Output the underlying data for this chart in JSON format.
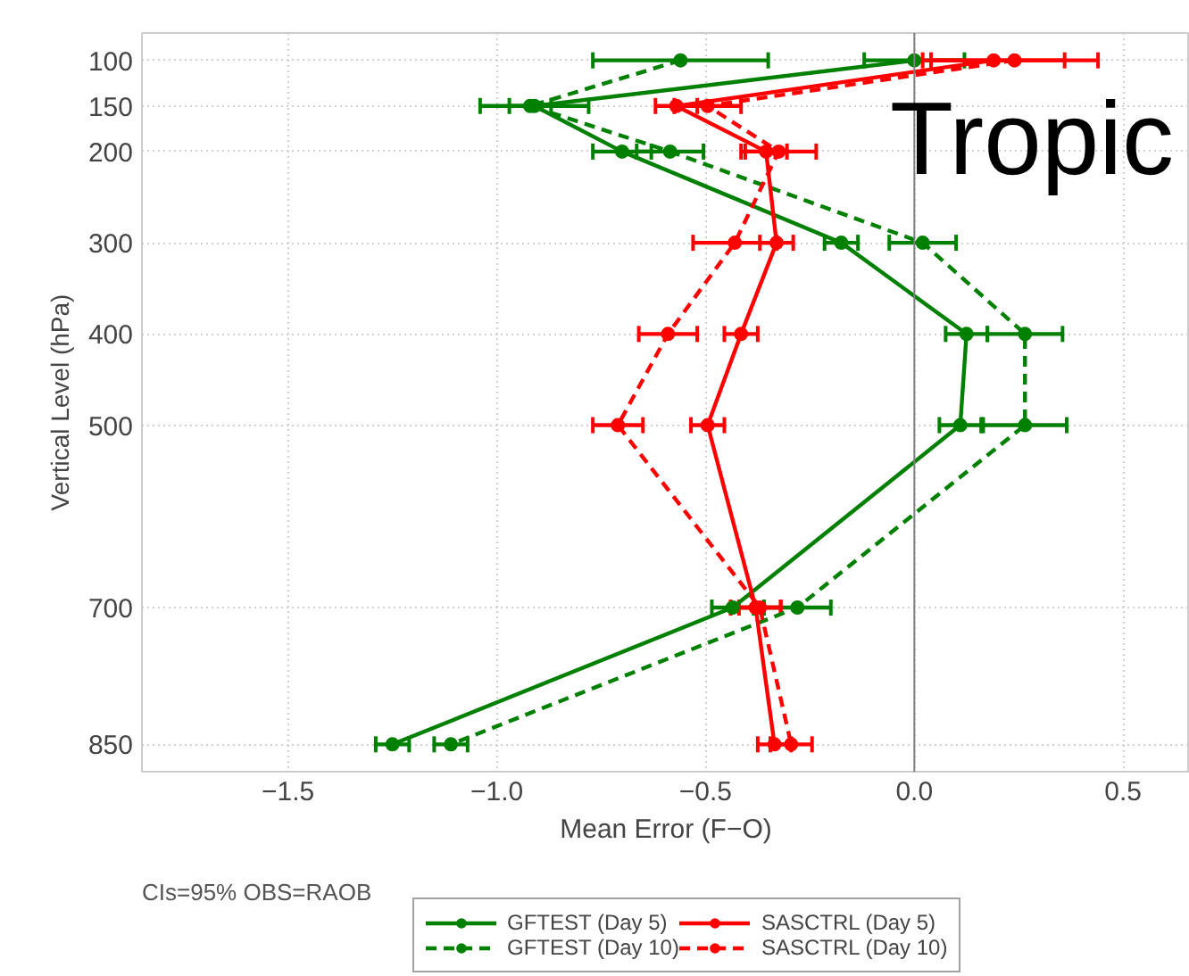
{
  "chart_data": {
    "type": "line",
    "title": "Tropic",
    "orientation": "horizontal",
    "xlabel": "Mean Error (F−O)",
    "ylabel": "Vertical Level (hPa)",
    "x": [
      100,
      150,
      200,
      300,
      400,
      500,
      700,
      850
    ],
    "series": [
      {
        "name": "GFTEST (Day 5)",
        "color": "#008000",
        "line_style": "solid",
        "values": [
          0.0,
          -0.91,
          -0.7,
          -0.175,
          0.125,
          0.11,
          -0.435,
          -1.25
        ],
        "errors": [
          0.12,
          0.13,
          0.07,
          0.04,
          0.05,
          0.05,
          0.05,
          0.04
        ]
      },
      {
        "name": "GFTEST (Day 10)",
        "color": "#008000",
        "line_style": "dashed",
        "values": [
          -0.56,
          -0.92,
          -0.585,
          0.02,
          0.265,
          0.265,
          -0.28,
          -1.11
        ],
        "errors": [
          0.21,
          0.05,
          0.08,
          0.08,
          0.09,
          0.1,
          0.08,
          0.04
        ]
      },
      {
        "name": "SASCTRL (Day 5)",
        "color": "#ff0000",
        "line_style": "solid",
        "values": [
          0.19,
          -0.57,
          -0.355,
          -0.33,
          -0.415,
          -0.495,
          -0.38,
          -0.335
        ],
        "errors": [
          0.17,
          0.05,
          0.05,
          0.04,
          0.04,
          0.04,
          0.06,
          0.04
        ]
      },
      {
        "name": "SASCTRL (Day 10)",
        "color": "#ff0000",
        "line_style": "dashed",
        "values": [
          0.24,
          -0.495,
          -0.325,
          -0.43,
          -0.59,
          -0.71,
          -0.37,
          -0.295
        ],
        "errors": [
          0.2,
          0.08,
          0.09,
          0.1,
          0.07,
          0.06,
          0.05,
          0.05
        ]
      }
    ],
    "xlim": [
      -1.85,
      0.66
    ],
    "ylim": [
      880,
      70
    ],
    "xticks": [
      {
        "value": -1.5,
        "label": "−1.5"
      },
      {
        "value": -1.0,
        "label": "−1.0"
      },
      {
        "value": -0.5,
        "label": "−0.5"
      },
      {
        "value": 0,
        "label": "0.0"
      },
      0.5
    ],
    "yticks": [
      100,
      150,
      200,
      300,
      400,
      500,
      700,
      850
    ],
    "ref_lines": [
      {
        "axis": "x",
        "value": 0,
        "color": "#808080"
      }
    ],
    "annotations": [
      "CIs=95%  OBS=RAOB"
    ],
    "marker": "circle",
    "grid": true,
    "legend": "bottom"
  }
}
